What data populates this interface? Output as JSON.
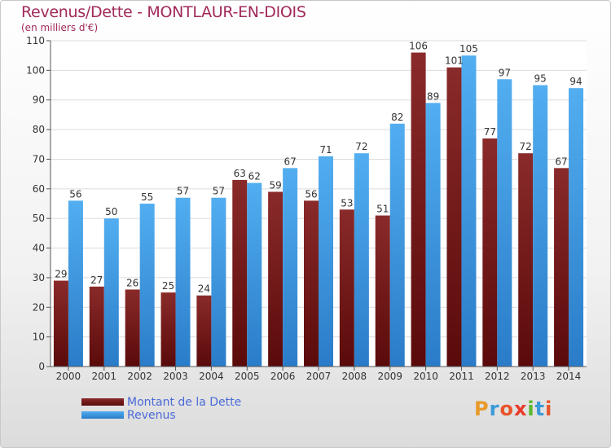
{
  "header": {
    "title": "Revenus/Dette - MONTLAUR-EN-DIOIS",
    "subtitle": "(en milliers d'€)"
  },
  "legend": {
    "items": [
      {
        "label": "Montant de la Dette",
        "color": "#7a1a1a"
      },
      {
        "label": "Revenus",
        "color": "#4aa3e8"
      }
    ]
  },
  "logo": {
    "letters": [
      "P",
      "r",
      "o",
      "x",
      "i",
      "t",
      "i"
    ],
    "colors": [
      "#e89a2a",
      "#3a9ad8",
      "#e8542a",
      "#e83a2a",
      "#5ab82a",
      "#3a9ad8",
      "#e8542a"
    ]
  },
  "chart_data": {
    "type": "bar",
    "categories": [
      "2000",
      "2001",
      "2002",
      "2003",
      "2004",
      "2005",
      "2006",
      "2007",
      "2008",
      "2009",
      "2010",
      "2011",
      "2012",
      "2013",
      "2014"
    ],
    "series": [
      {
        "name": "Montant de la Dette",
        "values": [
          29,
          27,
          26,
          25,
          24,
          63,
          59,
          56,
          53,
          51,
          106,
          101,
          77,
          72,
          67
        ]
      },
      {
        "name": "Revenus",
        "values": [
          56,
          50,
          55,
          57,
          57,
          62,
          67,
          71,
          72,
          82,
          89,
          105,
          97,
          95,
          94
        ]
      }
    ],
    "ylim": [
      0,
      110
    ],
    "yticks": [
      0,
      10,
      20,
      30,
      40,
      50,
      60,
      70,
      80,
      90,
      100,
      110
    ],
    "grid": true,
    "legend_position": "bottom-left"
  }
}
